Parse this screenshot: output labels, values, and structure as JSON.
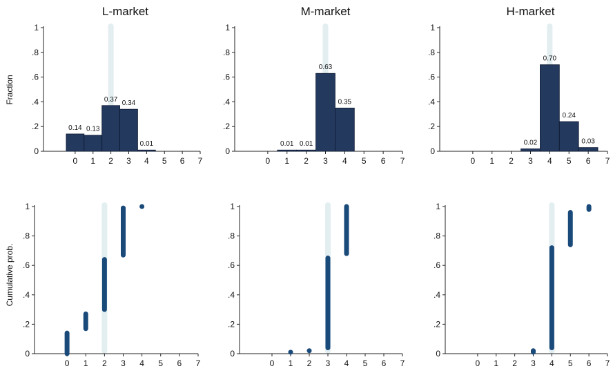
{
  "colors": {
    "bar": "#23395d",
    "bar_edge": "#0e1a33",
    "marker": "#1a4a7a",
    "band": "#e3eef1",
    "axis": "#222222"
  },
  "row_labels": {
    "top": "Fraction",
    "bottom": "Cumulative prob."
  },
  "chart_data": [
    {
      "type": "bar",
      "title": "L-market",
      "ylabel": "Fraction",
      "x_ticks": [
        "0",
        "1",
        "2",
        "3",
        "4",
        "5",
        "6",
        "7"
      ],
      "xlim": [
        -1,
        7
      ],
      "ylim": [
        0,
        1
      ],
      "y_ticks": [
        "0",
        ".2",
        ".4",
        ".6",
        ".8",
        "1"
      ],
      "highlight_x": 2,
      "categories": [
        0,
        1,
        2,
        3,
        4
      ],
      "values": [
        0.14,
        0.13,
        0.37,
        0.34,
        0.01
      ],
      "data_labels": [
        "0.14",
        "0.13",
        "0.37",
        "0.34",
        "0.01"
      ]
    },
    {
      "type": "bar",
      "title": "M-market",
      "ylabel": "",
      "x_ticks": [
        "0",
        "1",
        "2",
        "3",
        "4",
        "5",
        "6",
        "7"
      ],
      "xlim": [
        -1,
        7
      ],
      "ylim": [
        0,
        1
      ],
      "y_ticks": [
        "0",
        ".2",
        ".4",
        ".6",
        ".8",
        "1"
      ],
      "highlight_x": 3,
      "categories": [
        1,
        2,
        3,
        4
      ],
      "values": [
        0.01,
        0.01,
        0.63,
        0.35
      ],
      "data_labels": [
        "0.01",
        "0.01",
        "0.63",
        "0.35"
      ]
    },
    {
      "type": "bar",
      "title": "H-market",
      "ylabel": "",
      "x_ticks": [
        "0",
        "1",
        "2",
        "3",
        "4",
        "5",
        "6",
        "7"
      ],
      "xlim": [
        -1,
        7
      ],
      "ylim": [
        0,
        1
      ],
      "y_ticks": [
        "0",
        ".2",
        ".4",
        ".6",
        ".8",
        "1"
      ],
      "highlight_x": 4,
      "categories": [
        3,
        4,
        5,
        6
      ],
      "values": [
        0.02,
        0.7,
        0.24,
        0.03
      ],
      "data_labels": [
        "0.02",
        "0.70",
        "0.24",
        "0.03"
      ]
    },
    {
      "type": "range",
      "title": "",
      "ylabel": "Cumulative prob.",
      "x_ticks": [
        "0",
        "1",
        "2",
        "3",
        "4",
        "5",
        "6",
        "7"
      ],
      "xlim": [
        -1,
        7
      ],
      "ylim": [
        0,
        1
      ],
      "y_ticks": [
        "0",
        ".2",
        ".4",
        ".6",
        ".8",
        "1"
      ],
      "highlight_x": 2,
      "ranges": [
        {
          "x": 0,
          "low": 0.0,
          "high": 0.14
        },
        {
          "x": 1,
          "low": 0.17,
          "high": 0.27
        },
        {
          "x": 2,
          "low": 0.3,
          "high": 0.64
        },
        {
          "x": 3,
          "low": 0.67,
          "high": 0.99
        },
        {
          "x": 4,
          "low": 1.0,
          "high": 1.0
        }
      ]
    },
    {
      "type": "range",
      "title": "",
      "ylabel": "",
      "x_ticks": [
        "0",
        "1",
        "2",
        "3",
        "4",
        "5",
        "6",
        "7"
      ],
      "xlim": [
        -1,
        7
      ],
      "ylim": [
        0,
        1
      ],
      "y_ticks": [
        "0",
        ".2",
        ".4",
        ".6",
        ".8",
        "1"
      ],
      "highlight_x": 3,
      "ranges": [
        {
          "x": 1,
          "low": 0.01,
          "high": 0.01
        },
        {
          "x": 2,
          "low": 0.02,
          "high": 0.02
        },
        {
          "x": 3,
          "low": 0.04,
          "high": 0.65
        },
        {
          "x": 4,
          "low": 0.68,
          "high": 1.0
        }
      ]
    },
    {
      "type": "range",
      "title": "",
      "ylabel": "",
      "x_ticks": [
        "0",
        "1",
        "2",
        "3",
        "4",
        "5",
        "6",
        "7"
      ],
      "xlim": [
        -1,
        7
      ],
      "ylim": [
        0,
        1
      ],
      "y_ticks": [
        "0",
        ".2",
        ".4",
        ".6",
        ".8",
        "1"
      ],
      "highlight_x": 4,
      "ranges": [
        {
          "x": 3,
          "low": 0.01,
          "high": 0.02
        },
        {
          "x": 4,
          "low": 0.04,
          "high": 0.72
        },
        {
          "x": 5,
          "low": 0.74,
          "high": 0.96
        },
        {
          "x": 6,
          "low": 0.98,
          "high": 1.0
        }
      ]
    }
  ]
}
